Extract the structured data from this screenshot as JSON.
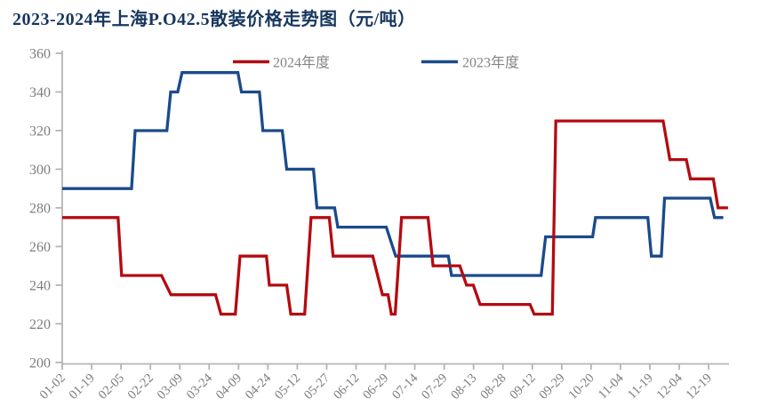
{
  "page": {
    "title": "2023-2024年上海P.O42.5散装价格走势图（元/吨）"
  },
  "chart_data": {
    "type": "line",
    "subtype": "step",
    "title": "2023-2024年上海P.O42.5散装价格走势图（元/吨）",
    "unit": "元/吨",
    "xlabel": "",
    "ylabel": "",
    "ylim": [
      200,
      360
    ],
    "y_ticks": [
      360,
      340,
      320,
      300,
      280,
      260,
      240,
      220,
      200
    ],
    "x_labels": [
      "01-02",
      "01-19",
      "02-05",
      "02-22",
      "03-09",
      "03-24",
      "04-09",
      "04-24",
      "05-12",
      "05-27",
      "06-12",
      "06-29",
      "07-14",
      "07-29",
      "08-13",
      "08-28",
      "09-12",
      "09-29",
      "10-20",
      "11-04",
      "11-19",
      "12-04",
      "12-19"
    ],
    "grid": false,
    "legend_position": "top-center",
    "axis_color": "#b5b5b5",
    "label_color": "#7d7d7d",
    "series": [
      {
        "name": "2024年度",
        "color": "#b30b11",
        "points": [
          [
            0,
            275
          ],
          [
            1.9,
            275
          ],
          [
            2.02,
            245
          ],
          [
            3.38,
            245
          ],
          [
            3.7,
            235
          ],
          [
            5.22,
            235
          ],
          [
            5.4,
            225
          ],
          [
            5.89,
            225
          ],
          [
            6.05,
            255
          ],
          [
            6.95,
            255
          ],
          [
            7.05,
            240
          ],
          [
            7.64,
            240
          ],
          [
            7.78,
            225
          ],
          [
            8.25,
            225
          ],
          [
            8.47,
            275
          ],
          [
            9.09,
            275
          ],
          [
            9.22,
            255
          ],
          [
            10.57,
            255
          ],
          [
            10.9,
            235
          ],
          [
            11.09,
            235
          ],
          [
            11.2,
            225
          ],
          [
            11.33,
            225
          ],
          [
            11.55,
            275
          ],
          [
            12.45,
            275
          ],
          [
            12.62,
            250
          ],
          [
            13.53,
            250
          ],
          [
            13.76,
            240
          ],
          [
            13.99,
            240
          ],
          [
            14.22,
            230
          ],
          [
            15.92,
            230
          ],
          [
            16.06,
            225
          ],
          [
            16.68,
            225
          ],
          [
            16.8,
            325
          ],
          [
            20.45,
            325
          ],
          [
            20.68,
            305
          ],
          [
            21.24,
            305
          ],
          [
            21.38,
            295
          ],
          [
            22.16,
            295
          ],
          [
            22.32,
            280
          ],
          [
            22.66,
            280
          ]
        ]
      },
      {
        "name": "2023年度",
        "color": "#1a4a8c",
        "points": [
          [
            0,
            290
          ],
          [
            2.36,
            290
          ],
          [
            2.48,
            320
          ],
          [
            3.56,
            320
          ],
          [
            3.69,
            340
          ],
          [
            3.93,
            340
          ],
          [
            4.08,
            350
          ],
          [
            5.98,
            350
          ],
          [
            6.1,
            340
          ],
          [
            6.71,
            340
          ],
          [
            6.83,
            320
          ],
          [
            7.49,
            320
          ],
          [
            7.64,
            300
          ],
          [
            8.55,
            300
          ],
          [
            8.67,
            280
          ],
          [
            9.27,
            280
          ],
          [
            9.38,
            270
          ],
          [
            11.03,
            270
          ],
          [
            11.35,
            255
          ],
          [
            13.14,
            255
          ],
          [
            13.25,
            245
          ],
          [
            16.3,
            245
          ],
          [
            16.45,
            265
          ],
          [
            18.05,
            265
          ],
          [
            18.15,
            275
          ],
          [
            19.93,
            275
          ],
          [
            20.05,
            255
          ],
          [
            20.39,
            255
          ],
          [
            20.5,
            285
          ],
          [
            22.05,
            285
          ],
          [
            22.2,
            275
          ],
          [
            22.5,
            275
          ]
        ]
      }
    ]
  }
}
